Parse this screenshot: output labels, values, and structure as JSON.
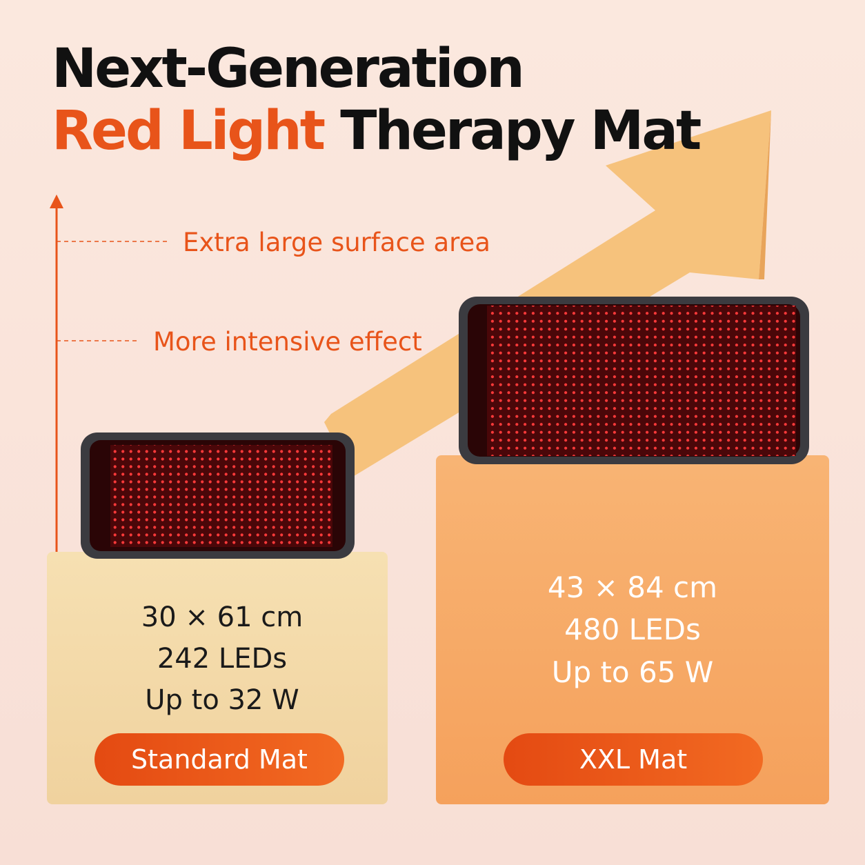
{
  "header": {
    "title_line1": "Next-Generation",
    "title_highlight": "Red Light",
    "title_rest": "Therapy Mat"
  },
  "annotations": [
    "Extra large surface area",
    "More intensive effect"
  ],
  "products": [
    {
      "specs": [
        "30 × 61 cm",
        "242 LEDs",
        "Up to 32 W"
      ],
      "label": "Standard Mat"
    },
    {
      "specs": [
        "43 × 84 cm",
        "480 LEDs",
        "Up to 65 W"
      ],
      "label": "XXL Mat"
    }
  ]
}
